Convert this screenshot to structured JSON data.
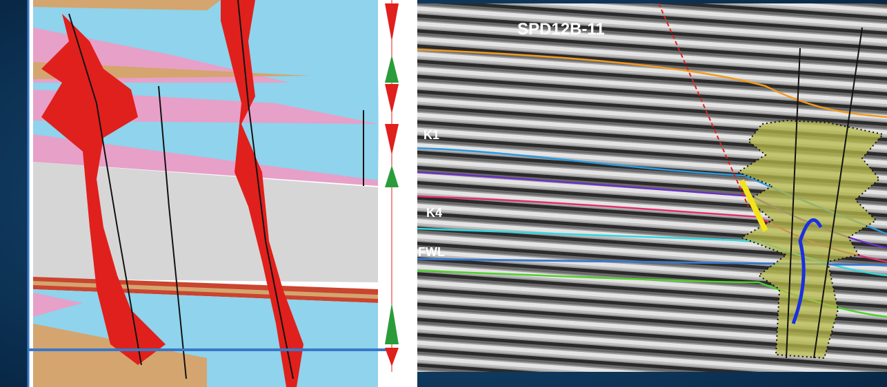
{
  "seismic_section": {
    "title": "SPD12B-11",
    "horizon_labels": [
      "K1",
      "K4",
      "FWL"
    ]
  }
}
